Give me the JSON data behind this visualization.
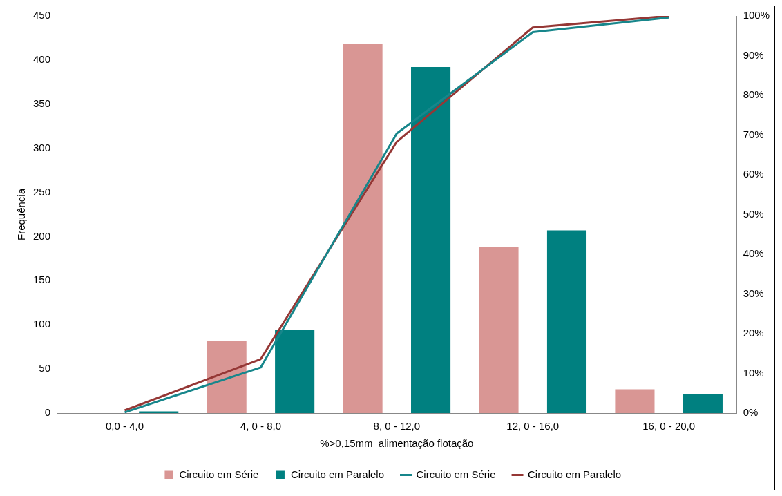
{
  "chart_data": {
    "type": "bar",
    "xlabel": "%>0,15mm  alimentação flotação",
    "ylabel": "Frequência",
    "categories": [
      "0,0 - 4,0",
      "4, 0 - 8,0",
      "8, 0 - 12,0",
      "12, 0 - 16,0",
      "16, 0 - 20,0"
    ],
    "series": [
      {
        "name": "Circuito em Série",
        "color": "#d99694",
        "values": [
          0,
          82,
          418,
          188,
          27
        ]
      },
      {
        "name": "Circuito em Paralelo",
        "color": "#008080",
        "values": [
          2,
          94,
          392,
          207,
          22
        ]
      },
      {
        "name": "Circuito em Série",
        "type": "line",
        "axis": "y2",
        "color": "#17868b",
        "values": [
          0.2,
          11.5,
          70.4,
          95.9,
          99.6
        ]
      },
      {
        "name": "Circuito em Paralelo",
        "type": "line",
        "axis": "y2",
        "color": "#953735",
        "values": [
          0.7,
          13.6,
          68.3,
          97.1,
          100
        ]
      }
    ],
    "ylim": [
      0,
      450
    ],
    "yticks": [
      0,
      50,
      100,
      150,
      200,
      250,
      300,
      350,
      400,
      450
    ],
    "y2lim": [
      0,
      100
    ],
    "y2ticks": [
      {
        "value": 0,
        "label": "0%"
      },
      {
        "value": 10,
        "label": "10%"
      },
      {
        "value": 20,
        "label": "20%"
      },
      {
        "value": 30,
        "label": "30%"
      },
      {
        "value": 40,
        "label": "40%"
      },
      {
        "value": 50,
        "label": "50%"
      },
      {
        "value": 60,
        "label": "60%"
      },
      {
        "value": 70,
        "label": "70%"
      },
      {
        "value": 80,
        "label": "80%"
      },
      {
        "value": 90,
        "label": "90%"
      },
      {
        "value": 100,
        "label": "100%"
      }
    ],
    "legend": "bottom",
    "marker": "none"
  }
}
